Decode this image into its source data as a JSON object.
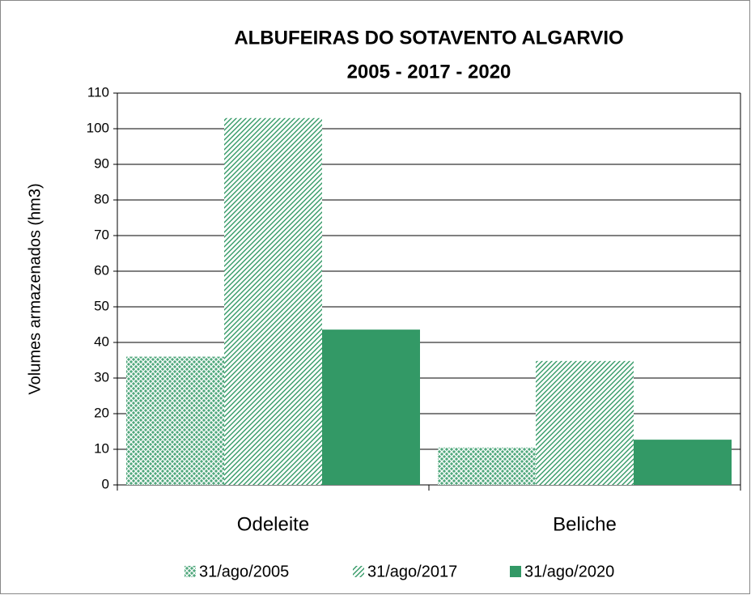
{
  "chart_data": {
    "type": "bar",
    "title": "ALBUFEIRAS DO SOTAVENTO ALGARVIO",
    "subtitle": "2005 - 2017 - 2020",
    "y_label": "Volumes armazenados (hm3)",
    "categories": [
      "Odeleite",
      "Beliche"
    ],
    "series": [
      {
        "name": "31/ago/2005",
        "color": "#339966",
        "pattern": "crosshatch",
        "values": [
          36,
          10.5
        ]
      },
      {
        "name": "31/ago/2017",
        "color": "#339966",
        "pattern": "diagonal",
        "values": [
          103,
          34.8
        ]
      },
      {
        "name": "31/ago/2020",
        "color": "#339966",
        "pattern": "solid",
        "values": [
          43.6,
          12.7
        ]
      }
    ],
    "ylim": [
      0,
      110
    ],
    "yticks": [
      0,
      10,
      20,
      30,
      40,
      50,
      60,
      70,
      80,
      90,
      100,
      110
    ],
    "grid": true,
    "legend": "bottom"
  }
}
